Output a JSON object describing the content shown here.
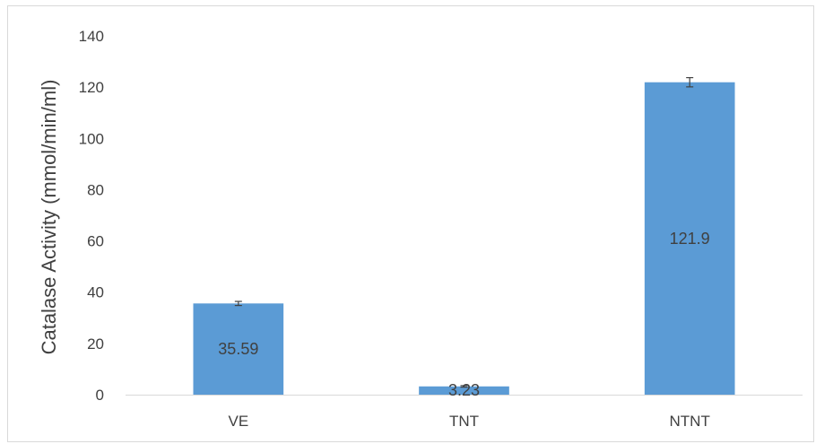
{
  "chart_data": {
    "type": "bar",
    "categories": [
      "VE",
      "TNT",
      "NTNT"
    ],
    "values": [
      35.59,
      3.23,
      121.9
    ],
    "data_labels": [
      "35.59",
      "3.23",
      "121.9"
    ],
    "error_bars": [
      0.8,
      0.3,
      1.8
    ],
    "ylabel": "Catalase Activity (mmol/min/ml)",
    "xlabel": "",
    "ylim": [
      0,
      140
    ],
    "yticks": [
      0,
      20,
      40,
      60,
      80,
      100,
      120,
      140
    ],
    "grid": false,
    "legend": "none",
    "bar_color": "#5b9bd5",
    "axis_color": "#d9d9d9",
    "text_color": "#404040",
    "error_bar_color": "#404040"
  }
}
